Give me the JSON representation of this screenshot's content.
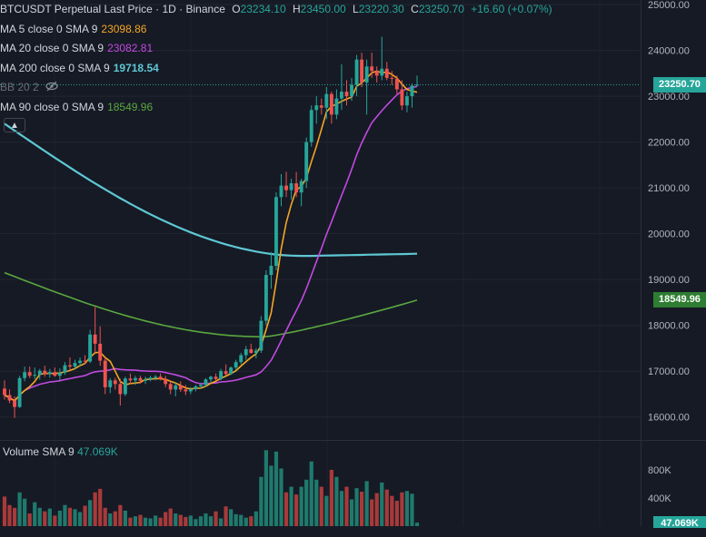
{
  "header": {
    "title": "BTCUSDT Perpetual Last Price · 1D · Binance",
    "open_label": "O",
    "open": "23234.10",
    "high_label": "H",
    "high": "23450.00",
    "low_label": "L",
    "low": "23220.30",
    "close_label": "C",
    "close": "23250.70",
    "change": "+16.60 (+0.07%)"
  },
  "indicators": [
    {
      "label": "MA 5 close 0 SMA 9",
      "value": "23098.86",
      "color": "#f5a623"
    },
    {
      "label": "MA 20 close 0 SMA 9",
      "value": "23082.81",
      "color": "#c14ae0"
    },
    {
      "label": "MA 200 close 0 SMA 9",
      "value": "19718.54",
      "color": "#5ec8d4"
    },
    {
      "label": "BB 20 2",
      "value": "",
      "color": "#6a6d78",
      "hidden_icon": "eye-off-icon"
    },
    {
      "label": "MA 90 close 0 SMA 9",
      "value": "18549.96",
      "color": "#5aa83f"
    }
  ],
  "collapse_icon": "chevron-up-icon",
  "volume": {
    "label": "Volume SMA 9",
    "value": "47.069K"
  },
  "price_tags": {
    "last": "23250.70",
    "ma90": "18549.96",
    "volume": "47.069K"
  },
  "colors": {
    "up": "#26a69a",
    "down": "#ef5350",
    "bg": "#161a25"
  },
  "chart_data": {
    "type": "candlestick",
    "symbol": "BTCUSDT Perpetual",
    "interval": "1D",
    "price_axis": {
      "range": [
        15500,
        25100
      ],
      "ticks": [
        16000,
        17000,
        18000,
        19000,
        20000,
        21000,
        22000,
        23000,
        24000,
        25000
      ],
      "tick_labels": [
        "16000.00",
        "17000.00",
        "18000.00",
        "19000.00",
        "20000.00",
        "21000.00",
        "22000.00",
        "23000.00",
        "24000.00",
        "25000.00"
      ]
    },
    "volume_axis": {
      "range": [
        0,
        1200000
      ],
      "ticks": [
        400000,
        800000
      ],
      "tick_labels": [
        "400K",
        "800K"
      ]
    },
    "last_price": 23250.7,
    "ma200_tag": 18549.96,
    "candles": [
      [
        16620,
        16800,
        16380,
        16480
      ],
      [
        16480,
        16600,
        16300,
        16360
      ],
      [
        16360,
        16450,
        15980,
        16220
      ],
      [
        16220,
        16900,
        16200,
        16850
      ],
      [
        16850,
        17100,
        16780,
        16980
      ],
      [
        16980,
        17100,
        16850,
        16900
      ],
      [
        16900,
        17080,
        16830,
        16920
      ],
      [
        16920,
        17050,
        16820,
        17010
      ],
      [
        17010,
        17120,
        16880,
        16940
      ],
      [
        16940,
        17050,
        16860,
        16980
      ],
      [
        16980,
        17080,
        16880,
        16900
      ],
      [
        16900,
        17060,
        16800,
        16970
      ],
      [
        16970,
        17200,
        16920,
        17130
      ],
      [
        17130,
        17300,
        17020,
        17100
      ],
      [
        17100,
        17250,
        17040,
        17180
      ],
      [
        17180,
        17300,
        17100,
        17230
      ],
      [
        17230,
        17350,
        17150,
        17210
      ],
      [
        17210,
        17900,
        17180,
        17800
      ],
      [
        17800,
        18400,
        17400,
        17600
      ],
      [
        17600,
        17980,
        17120,
        17230
      ],
      [
        17230,
        17300,
        16500,
        16650
      ],
      [
        16650,
        16850,
        16520,
        16800
      ],
      [
        16800,
        16860,
        16600,
        16720
      ],
      [
        16720,
        16840,
        16250,
        16500
      ],
      [
        16500,
        16880,
        16460,
        16840
      ],
      [
        16840,
        16950,
        16720,
        16800
      ],
      [
        16800,
        16900,
        16700,
        16850
      ],
      [
        16850,
        16900,
        16730,
        16790
      ],
      [
        16790,
        16880,
        16720,
        16820
      ],
      [
        16820,
        16900,
        16780,
        16860
      ],
      [
        16860,
        16920,
        16800,
        16880
      ],
      [
        16880,
        16950,
        16800,
        16830
      ],
      [
        16830,
        16900,
        16650,
        16720
      ],
      [
        16720,
        16780,
        16500,
        16600
      ],
      [
        16600,
        16750,
        16450,
        16690
      ],
      [
        16690,
        16780,
        16550,
        16600
      ],
      [
        16600,
        16700,
        16480,
        16560
      ],
      [
        16560,
        16650,
        16500,
        16610
      ],
      [
        16610,
        16700,
        16560,
        16670
      ],
      [
        16670,
        16750,
        16620,
        16700
      ],
      [
        16700,
        16850,
        16650,
        16820
      ],
      [
        16820,
        16900,
        16760,
        16880
      ],
      [
        16880,
        16950,
        16800,
        16830
      ],
      [
        16830,
        17050,
        16800,
        17000
      ],
      [
        17000,
        17150,
        16900,
        16940
      ],
      [
        16940,
        17100,
        16920,
        17080
      ],
      [
        17080,
        17250,
        17020,
        17200
      ],
      [
        17200,
        17400,
        17150,
        17350
      ],
      [
        17350,
        17550,
        17250,
        17480
      ],
      [
        17480,
        17600,
        17380,
        17400
      ],
      [
        17400,
        17500,
        17280,
        17450
      ],
      [
        17450,
        18200,
        17400,
        18100
      ],
      [
        18100,
        19200,
        18000,
        19100
      ],
      [
        19100,
        19600,
        18800,
        19300
      ],
      [
        19300,
        20900,
        19200,
        20800
      ],
      [
        20800,
        21300,
        20600,
        21050
      ],
      [
        21050,
        21350,
        20800,
        20950
      ],
      [
        20950,
        21200,
        20750,
        21100
      ],
      [
        21100,
        21350,
        20800,
        20900
      ],
      [
        20900,
        21200,
        20600,
        21150
      ],
      [
        21150,
        22100,
        21000,
        22000
      ],
      [
        22000,
        22800,
        21900,
        22700
      ],
      [
        22700,
        23000,
        22400,
        22800
      ],
      [
        22800,
        22950,
        22600,
        22750
      ],
      [
        22750,
        23200,
        22500,
        23050
      ],
      [
        23050,
        23100,
        22400,
        22600
      ],
      [
        22600,
        23150,
        22500,
        22950
      ],
      [
        22950,
        23700,
        22700,
        23100
      ],
      [
        23100,
        23350,
        22800,
        23000
      ],
      [
        23000,
        23400,
        22900,
        23250
      ],
      [
        23250,
        23900,
        23000,
        23800
      ],
      [
        23800,
        23950,
        23200,
        23300
      ],
      [
        23300,
        23800,
        22600,
        23650
      ],
      [
        23650,
        23950,
        23400,
        23550
      ],
      [
        23550,
        23650,
        23300,
        23450
      ],
      [
        23450,
        24300,
        23350,
        23600
      ],
      [
        23600,
        23750,
        23350,
        23400
      ],
      [
        23400,
        23550,
        23250,
        23380
      ],
      [
        23380,
        23450,
        23050,
        23150
      ],
      [
        23150,
        23350,
        22700,
        22800
      ],
      [
        22800,
        23100,
        22650,
        23000
      ],
      [
        23000,
        23280,
        22750,
        23234
      ],
      [
        23234.1,
        23450,
        23220.3,
        23250.7
      ]
    ],
    "volumes": [
      420000,
      300000,
      260000,
      480000,
      390000,
      180000,
      340000,
      260000,
      210000,
      250000,
      150000,
      220000,
      300000,
      260000,
      240000,
      200000,
      290000,
      370000,
      480000,
      530000,
      260000,
      180000,
      210000,
      300000,
      220000,
      120000,
      140000,
      160000,
      120000,
      110000,
      150000,
      120000,
      200000,
      250000,
      180000,
      160000,
      130000,
      150000,
      100000,
      140000,
      180000,
      140000,
      210000,
      110000,
      280000,
      240000,
      170000,
      160000,
      120000,
      140000,
      210000,
      700000,
      1080000,
      860000,
      1060000,
      820000,
      480000,
      560000,
      450000,
      560000,
      660000,
      920000,
      660000,
      560000,
      430000,
      800000,
      700000,
      500000,
      560000,
      380000,
      540000,
      490000,
      640000,
      380000,
      470000,
      620000,
      520000,
      430000,
      360000,
      480000,
      500000,
      460000,
      50000
    ]
  }
}
